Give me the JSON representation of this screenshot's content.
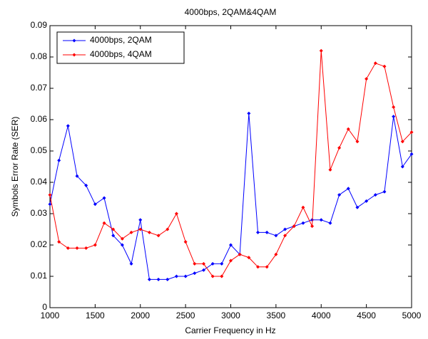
{
  "chart_data": {
    "type": "line",
    "title": "4000bps, 2QAM&4QAM",
    "xlabel": "Carrier Frequency in Hz",
    "ylabel": "Symbols Error Rate (SER)",
    "x": [
      1000,
      1100,
      1200,
      1300,
      1400,
      1500,
      1600,
      1700,
      1800,
      1900,
      2000,
      2100,
      2200,
      2300,
      2400,
      2500,
      2600,
      2700,
      2800,
      2900,
      3000,
      3100,
      3200,
      3300,
      3400,
      3500,
      3600,
      3700,
      3800,
      3900,
      4000,
      4100,
      4200,
      4300,
      4400,
      4500,
      4600,
      4700,
      4800,
      4900,
      5000
    ],
    "series": [
      {
        "name": "4000bps, 2QAM",
        "color": "#0000ff",
        "values": [
          0.033,
          0.047,
          0.058,
          0.042,
          0.039,
          0.033,
          0.035,
          0.023,
          0.02,
          0.014,
          0.028,
          0.009,
          0.009,
          0.009,
          0.01,
          0.01,
          0.011,
          0.012,
          0.014,
          0.014,
          0.02,
          0.017,
          0.062,
          0.024,
          0.024,
          0.023,
          0.025,
          0.026,
          0.027,
          0.028,
          0.028,
          0.027,
          0.036,
          0.038,
          0.032,
          0.034,
          0.036,
          0.037,
          0.061,
          0.045,
          0.049
        ]
      },
      {
        "name": "4000bps, 4QAM",
        "color": "#ff0000",
        "values": [
          0.036,
          0.021,
          0.019,
          0.019,
          0.019,
          0.02,
          0.027,
          0.025,
          0.022,
          0.024,
          0.025,
          0.024,
          0.023,
          0.025,
          0.03,
          0.021,
          0.014,
          0.014,
          0.01,
          0.01,
          0.015,
          0.017,
          0.016,
          0.013,
          0.013,
          0.017,
          0.023,
          0.026,
          0.032,
          0.026,
          0.082,
          0.044,
          0.051,
          0.057,
          0.053,
          0.073,
          0.078,
          0.077,
          0.064,
          0.053,
          0.056
        ]
      }
    ],
    "xlim": [
      1000,
      5000
    ],
    "xticks": [
      1000,
      1500,
      2000,
      2500,
      3000,
      3500,
      4000,
      4500,
      5000
    ],
    "ylim": [
      0,
      0.09
    ],
    "yticks": [
      0,
      0.01,
      0.02,
      0.03,
      0.04,
      0.05,
      0.06,
      0.07,
      0.08,
      0.09
    ],
    "grid": false,
    "legend": "upper left"
  }
}
